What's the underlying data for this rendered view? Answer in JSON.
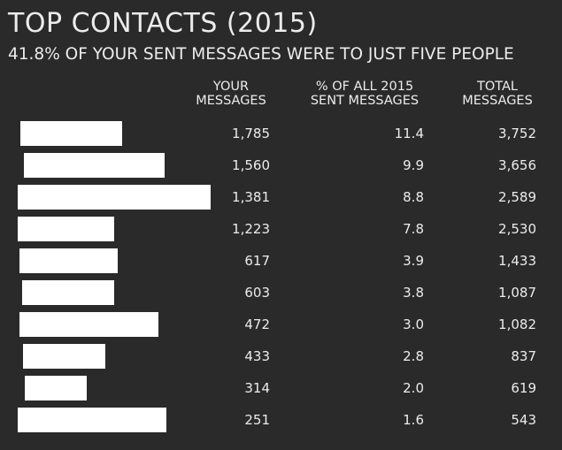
{
  "chart_data": {
    "type": "table",
    "title": "TOP CONTACTS (2015)",
    "subtitle": "41.8% OF YOUR SENT MESSAGES WERE TO JUST FIVE PEOPLE",
    "columns": [
      {
        "key": "messages",
        "lines": [
          "YOUR",
          "MESSAGES"
        ]
      },
      {
        "key": "pct",
        "lines": [
          "% OF ALL 2015",
          "SENT MESSAGES"
        ]
      },
      {
        "key": "total",
        "lines": [
          "TOTAL",
          "MESSAGES"
        ]
      }
    ],
    "rows": [
      {
        "messages": "1,785",
        "pct": "11.4",
        "total": "3,752"
      },
      {
        "messages": "1,560",
        "pct": "9.9",
        "total": "3,656"
      },
      {
        "messages": "1,381",
        "pct": "8.8",
        "total": "2,589"
      },
      {
        "messages": "1,223",
        "pct": "7.8",
        "total": "2,530"
      },
      {
        "messages": "617",
        "pct": "3.9",
        "total": "1,433"
      },
      {
        "messages": "603",
        "pct": "3.8",
        "total": "1,087"
      },
      {
        "messages": "472",
        "pct": "3.0",
        "total": "1,082"
      },
      {
        "messages": "433",
        "pct": "2.8",
        "total": "837"
      },
      {
        "messages": "314",
        "pct": "2.0",
        "total": "619"
      },
      {
        "messages": "251",
        "pct": "1.6",
        "total": "543"
      }
    ],
    "redaction_color": "#ffffff",
    "background_color": "#2a2a2a",
    "text_color": "#ececec"
  }
}
